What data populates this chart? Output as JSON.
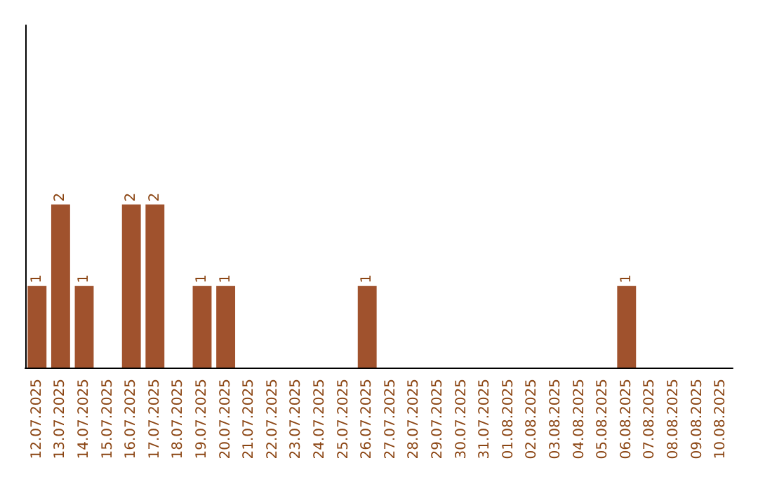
{
  "chart_data": {
    "type": "bar",
    "categories": [
      "12.07.2025",
      "13.07.2025",
      "14.07.2025",
      "15.07.2025",
      "16.07.2025",
      "17.07.2025",
      "18.07.2025",
      "19.07.2025",
      "20.07.2025",
      "21.07.2025",
      "22.07.2025",
      "23.07.2025",
      "24.07.2025",
      "25.07.2025",
      "26.07.2025",
      "27.07.2025",
      "28.07.2025",
      "29.07.2025",
      "30.07.2025",
      "31.07.2025",
      "01.08.2025",
      "02.08.2025",
      "03.08.2025",
      "04.08.2025",
      "05.08.2025",
      "06.08.2025",
      "07.08.2025",
      "08.08.2025",
      "09.08.2025",
      "10.08.2025"
    ],
    "values": [
      1,
      2,
      1,
      0,
      2,
      2,
      0,
      1,
      1,
      0,
      0,
      0,
      0,
      0,
      1,
      0,
      0,
      0,
      0,
      0,
      0,
      0,
      0,
      0,
      0,
      1,
      0,
      0,
      0,
      0
    ],
    "value_labels": [
      "1",
      "2",
      "1",
      null,
      "2",
      "2",
      null,
      "1",
      "1",
      null,
      null,
      null,
      null,
      null,
      "1",
      null,
      null,
      null,
      null,
      null,
      null,
      null,
      null,
      null,
      null,
      "1",
      null,
      null,
      null,
      null
    ],
    "color": "#a0522d",
    "grid": false
  }
}
